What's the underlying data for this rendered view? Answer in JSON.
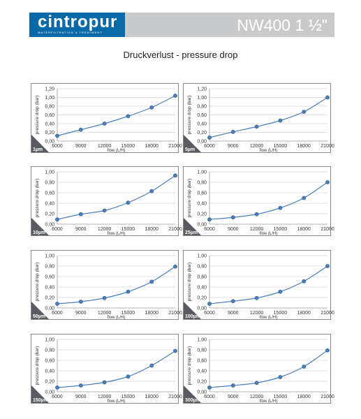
{
  "header": {
    "logo_text": "cintropur",
    "logo_tagline": "WATERFILTRATION & TREATMENT",
    "product_title": "NW400 1 ½\"",
    "brand_color": "#0a6aa8",
    "bar_color": "#c8cacc"
  },
  "page_title": "Druckverlust - pressure drop",
  "chart_data": [
    {
      "type": "line",
      "badge": "1µm",
      "x": [
        6000,
        9000,
        12000,
        15000,
        18000,
        21000
      ],
      "values": [
        0.12,
        0.26,
        0.4,
        0.57,
        0.77,
        1.04
      ],
      "ylim": [
        0,
        1.2
      ],
      "yticks": [
        "0,00",
        "0,20",
        "0,40",
        "0,60",
        "0,80",
        "1,00",
        "1,20"
      ],
      "xticks": [
        "6000",
        "9000",
        "12000",
        "15000",
        "18000",
        "21000"
      ],
      "xlabel": "flow (L/H)",
      "ylabel": "pressure drop (bar)",
      "grid": true,
      "color": "#4a7ebb"
    },
    {
      "type": "line",
      "badge": "5µm",
      "x": [
        6000,
        9000,
        12000,
        15000,
        18000,
        21000
      ],
      "values": [
        0.08,
        0.21,
        0.33,
        0.47,
        0.67,
        1.0
      ],
      "ylim": [
        0,
        1.2
      ],
      "yticks": [
        "0,00",
        "0,20",
        "0,40",
        "0,60",
        "0,80",
        "1,00",
        "1,20"
      ],
      "xticks": [
        "6000",
        "9000",
        "12000",
        "15000",
        "18000",
        "21000"
      ],
      "xlabel": "flow (L/H)",
      "ylabel": "pressure drop (bar)",
      "grid": true,
      "color": "#4a7ebb"
    },
    {
      "type": "line",
      "badge": "10µm",
      "x": [
        6000,
        9000,
        12000,
        15000,
        18000,
        21000
      ],
      "values": [
        0.09,
        0.19,
        0.26,
        0.41,
        0.63,
        0.93
      ],
      "ylim": [
        0,
        1.0
      ],
      "yticks": [
        "0,00",
        "0,20",
        "0,40",
        "0,60",
        "0,80",
        "1,00"
      ],
      "xticks": [
        "6000",
        "9000",
        "12000",
        "15000",
        "18000",
        "21000"
      ],
      "xlabel": "flow (L/H)",
      "ylabel": "pressure drop (bar)",
      "grid": true,
      "color": "#4a7ebb"
    },
    {
      "type": "line",
      "badge": "25µm",
      "x": [
        6000,
        9000,
        12000,
        15000,
        18000,
        21000
      ],
      "values": [
        0.09,
        0.13,
        0.19,
        0.31,
        0.5,
        0.8
      ],
      "ylim": [
        0,
        1.0
      ],
      "yticks": [
        "0,00",
        "0,20",
        "0,40",
        "0,60",
        "0,80",
        "1,00"
      ],
      "xticks": [
        "6000",
        "9000",
        "12000",
        "15000",
        "18000",
        "21000"
      ],
      "xlabel": "flow (L/H)",
      "ylabel": "pressure drop (bar)",
      "grid": true,
      "color": "#4a7ebb"
    },
    {
      "type": "line",
      "badge": "50µm",
      "x": [
        6000,
        9000,
        12000,
        15000,
        18000,
        21000
      ],
      "values": [
        0.08,
        0.12,
        0.19,
        0.31,
        0.5,
        0.79
      ],
      "ylim": [
        0,
        1.0
      ],
      "yticks": [
        "0,00",
        "0,20",
        "0,40",
        "0,60",
        "0,80",
        "1,00"
      ],
      "xticks": [
        "6000",
        "9000",
        "12000",
        "15000",
        "18000",
        "21000"
      ],
      "xlabel": "flow (L/H)",
      "ylabel": "pressure drop (bar)",
      "grid": true,
      "color": "#4a7ebb"
    },
    {
      "type": "line",
      "badge": "100µm",
      "x": [
        6000,
        9000,
        12000,
        15000,
        18000,
        21000
      ],
      "values": [
        0.08,
        0.13,
        0.19,
        0.31,
        0.51,
        0.8
      ],
      "ylim": [
        0,
        1.0
      ],
      "yticks": [
        "0,00",
        "0,20",
        "0,40",
        "0,60",
        "0,80",
        "1,00"
      ],
      "xticks": [
        "6000",
        "9000",
        "12000",
        "15000",
        "18000",
        "21000"
      ],
      "xlabel": "flow (L/H)",
      "ylabel": "pressure drop (bar)",
      "grid": true,
      "color": "#4a7ebb"
    },
    {
      "type": "line",
      "badge": "150µm",
      "x": [
        6000,
        9000,
        12000,
        15000,
        18000,
        21000
      ],
      "values": [
        0.08,
        0.12,
        0.18,
        0.29,
        0.5,
        0.78
      ],
      "ylim": [
        0,
        1.0
      ],
      "yticks": [
        "0,00",
        "0,20",
        "0,40",
        "0,60",
        "0,80",
        "1,00"
      ],
      "xticks": [
        "6000",
        "9000",
        "12000",
        "15000",
        "18000",
        "21000"
      ],
      "xlabel": "flow (L/H)",
      "ylabel": "pressure drop (bar)",
      "grid": true,
      "color": "#4a7ebb"
    },
    {
      "type": "line",
      "badge": "300µm",
      "x": [
        6000,
        9000,
        12000,
        15000,
        18000,
        21000
      ],
      "values": [
        0.08,
        0.12,
        0.17,
        0.28,
        0.48,
        0.79
      ],
      "ylim": [
        0,
        1.0
      ],
      "yticks": [
        "0,00",
        "0,20",
        "0,40",
        "0,60",
        "0,80",
        "1,00"
      ],
      "xticks": [
        "6000",
        "9000",
        "12000",
        "15000",
        "18000",
        "21000"
      ],
      "xlabel": "flow (L/H)",
      "ylabel": "pressure drop (bar)",
      "grid": true,
      "color": "#4a7ebb"
    }
  ]
}
